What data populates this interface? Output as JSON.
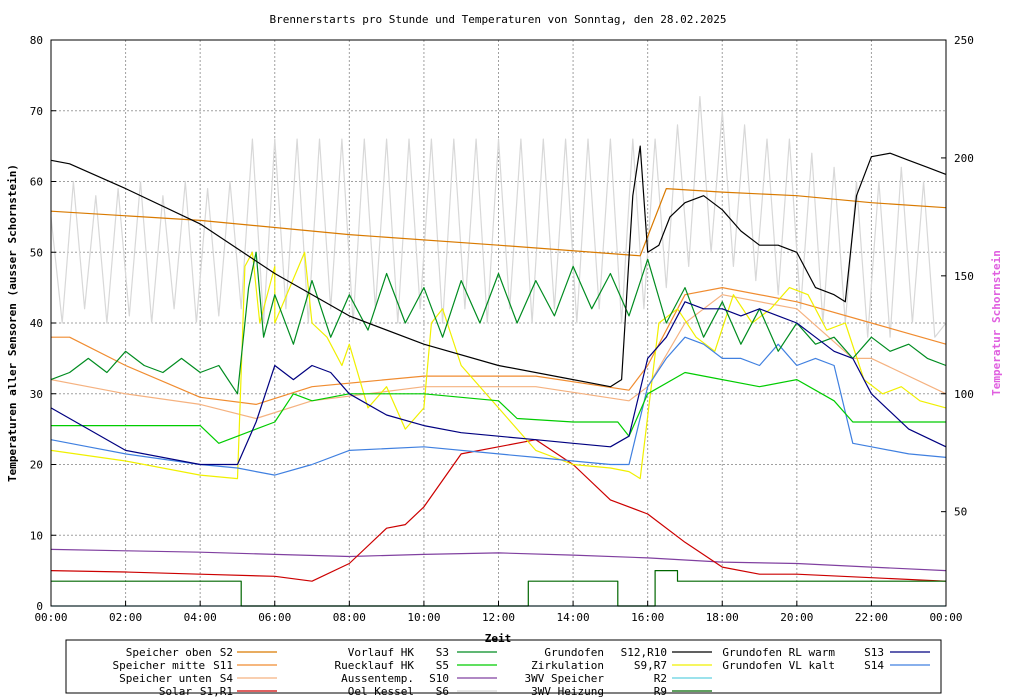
{
  "chart_data": {
    "type": "line",
    "title": "Brennerstarts pro Stunde und Temperaturen von Sonntag, den 28.02.2025",
    "xlabel": "Zeit",
    "ylabel": "Temperaturen aller Sensoren (ausser Schornstein)",
    "y2label": "Temperatur Schornstein",
    "xlim": [
      0,
      24
    ],
    "ylim": [
      0,
      80
    ],
    "y2lim": [
      10,
      250
    ],
    "grid": true,
    "legend_position": "bottom",
    "x_ticks": [
      {
        "v": 0,
        "label": "00:00"
      },
      {
        "v": 2,
        "label": "02:00"
      },
      {
        "v": 4,
        "label": "04:00"
      },
      {
        "v": 6,
        "label": "06:00"
      },
      {
        "v": 8,
        "label": "08:00"
      },
      {
        "v": 10,
        "label": "10:00"
      },
      {
        "v": 12,
        "label": "12:00"
      },
      {
        "v": 14,
        "label": "14:00"
      },
      {
        "v": 16,
        "label": "16:00"
      },
      {
        "v": 18,
        "label": "18:00"
      },
      {
        "v": 20,
        "label": "20:00"
      },
      {
        "v": 22,
        "label": "22:00"
      },
      {
        "v": 24,
        "label": "00:00"
      }
    ],
    "y_ticks": [
      {
        "v": 0,
        "label": "0"
      },
      {
        "v": 10,
        "label": "10"
      },
      {
        "v": 20,
        "label": "20"
      },
      {
        "v": 30,
        "label": "30"
      },
      {
        "v": 40,
        "label": "40"
      },
      {
        "v": 50,
        "label": "50"
      },
      {
        "v": 60,
        "label": "60"
      },
      {
        "v": 70,
        "label": "70"
      },
      {
        "v": 80,
        "label": "80"
      }
    ],
    "y2_ticks": [
      {
        "v": 50,
        "label": "50"
      },
      {
        "v": 100,
        "label": "100"
      },
      {
        "v": 150,
        "label": "150"
      },
      {
        "v": 200,
        "label": "200"
      },
      {
        "v": 250,
        "label": "250"
      }
    ],
    "series": [
      {
        "key": "s2",
        "name": "Speicher oben",
        "code": "S2",
        "color": "#d97a00",
        "axis": "y1",
        "x": [
          0,
          4,
          8,
          12,
          15.8,
          16.5,
          18,
          20,
          22,
          24
        ],
        "y": [
          55.8,
          54.5,
          52.5,
          51,
          49.5,
          59,
          58.5,
          58,
          57,
          56.3
        ]
      },
      {
        "key": "s11",
        "name": "Speicher mitte",
        "code": "S11",
        "color": "#f08c30",
        "axis": "y1",
        "x": [
          0,
          0.5,
          2,
          4,
          5.5,
          7,
          10,
          13,
          15.5,
          16,
          17,
          18,
          20,
          22,
          24
        ],
        "y": [
          38,
          38,
          34,
          29.5,
          28.5,
          31,
          32.5,
          32.5,
          30.5,
          34,
          44,
          45,
          43,
          40,
          37
        ]
      },
      {
        "key": "s4",
        "name": "Speicher unten",
        "code": "S4",
        "color": "#f5b280",
        "axis": "y1",
        "x": [
          0,
          2,
          4,
          5.5,
          7,
          10,
          13,
          15.5,
          16,
          17,
          18,
          20,
          21.5,
          22,
          24
        ],
        "y": [
          32,
          30,
          28.5,
          26.5,
          29,
          31,
          31,
          29,
          31,
          40,
          44,
          42,
          35,
          35,
          30
        ]
      },
      {
        "key": "s1",
        "name": "Solar",
        "code": "S1,R1",
        "color": "#cc0000",
        "axis": "y1",
        "x": [
          0,
          2,
          4,
          6,
          7,
          8,
          9,
          9.5,
          10,
          11,
          12,
          13,
          14,
          15,
          16,
          17,
          18,
          19,
          20,
          22,
          24
        ],
        "y": [
          5,
          4.8,
          4.5,
          4.2,
          3.5,
          6,
          11,
          11.5,
          14,
          21.5,
          22.5,
          23.5,
          20,
          15,
          13,
          9,
          5.5,
          4.5,
          4.5,
          4,
          3.5
        ]
      },
      {
        "key": "s3",
        "name": "Vorlauf HK",
        "code": "S3",
        "color": "#008c20",
        "axis": "y1",
        "x": [
          0,
          0.5,
          1,
          1.5,
          2,
          2.5,
          3,
          3.5,
          4,
          4.5,
          5,
          5.3,
          5.5,
          5.7,
          6,
          6.5,
          7,
          7.5,
          8,
          8.5,
          9,
          9.5,
          10,
          10.5,
          11,
          11.5,
          12,
          12.5,
          13,
          13.5,
          14,
          14.5,
          15,
          15.5,
          16,
          16.5,
          17,
          17.5,
          18,
          18.5,
          19,
          19.5,
          20,
          20.5,
          21,
          21.5,
          22,
          22.5,
          23,
          23.5,
          24
        ],
        "y": [
          32,
          33,
          35,
          33,
          36,
          34,
          33,
          35,
          33,
          34,
          30,
          45,
          50,
          38,
          44,
          37,
          46,
          38,
          44,
          39,
          47,
          40,
          45,
          38,
          46,
          40,
          47,
          40,
          46,
          41,
          48,
          42,
          47,
          41,
          49,
          40,
          45,
          38,
          43,
          37,
          42,
          36,
          40,
          37,
          38,
          35,
          38,
          36,
          37,
          35,
          34
        ]
      },
      {
        "key": "s5",
        "name": "Ruecklauf HK",
        "code": "S5",
        "color": "#00cc00",
        "axis": "y1",
        "x": [
          0,
          2,
          4,
          4.5,
          5,
          5.5,
          6,
          6.5,
          7,
          8,
          10,
          12,
          12.5,
          14,
          15.2,
          15.5,
          16,
          17,
          18,
          19,
          20,
          21,
          21.5,
          22,
          24
        ],
        "y": [
          25.5,
          25.5,
          25.5,
          23,
          24,
          25,
          26,
          30,
          29,
          30,
          30,
          29,
          26.5,
          26,
          26,
          24,
          30,
          33,
          32,
          31,
          32,
          29,
          26,
          26,
          26
        ]
      },
      {
        "key": "s10",
        "name": "Aussentemp.",
        "code": "S10",
        "color": "#8040a0",
        "axis": "y1",
        "x": [
          0,
          2,
          4,
          6,
          8,
          10,
          12,
          14,
          16,
          18,
          20,
          22,
          24
        ],
        "y": [
          8,
          7.8,
          7.6,
          7.3,
          7,
          7.3,
          7.5,
          7.2,
          6.8,
          6.2,
          6,
          5.5,
          5
        ]
      },
      {
        "key": "s6",
        "name": "Oel Kessel",
        "code": "S6",
        "color": "#d8d8d8",
        "axis": "y1",
        "x": [
          0,
          0.3,
          0.6,
          0.9,
          1.2,
          1.5,
          1.8,
          2.1,
          2.4,
          2.7,
          3.0,
          3.3,
          3.6,
          3.9,
          4.2,
          4.5,
          4.8,
          5.1,
          5.4,
          5.7,
          6.0,
          6.3,
          6.6,
          6.9,
          7.2,
          7.5,
          7.8,
          8.1,
          8.4,
          8.7,
          9.0,
          9.3,
          9.6,
          9.9,
          10.2,
          10.5,
          10.8,
          11.1,
          11.4,
          11.7,
          12.0,
          12.3,
          12.6,
          12.9,
          13.2,
          13.5,
          13.8,
          14.1,
          14.4,
          14.7,
          15.0,
          15.3,
          15.6,
          15.9,
          16.2,
          16.5,
          16.8,
          17.1,
          17.4,
          17.7,
          18.0,
          18.3,
          18.6,
          18.9,
          19.2,
          19.5,
          19.8,
          20.1,
          20.4,
          20.7,
          21.0,
          21.3,
          21.6,
          21.9,
          22.2,
          22.5,
          22.8,
          23.1,
          23.4,
          23.7,
          24
        ],
        "y": [
          55,
          40,
          60,
          42,
          58,
          40,
          59,
          41,
          60,
          40,
          58,
          42,
          60,
          40,
          59,
          41,
          60,
          42,
          66,
          40,
          66,
          42,
          66,
          40,
          66,
          42,
          66,
          40,
          66,
          42,
          66,
          40,
          66,
          42,
          66,
          40,
          66,
          42,
          66,
          40,
          66,
          42,
          66,
          40,
          66,
          42,
          66,
          40,
          66,
          42,
          66,
          40,
          66,
          42,
          66,
          45,
          68,
          48,
          72,
          50,
          70,
          48,
          68,
          46,
          66,
          44,
          66,
          42,
          64,
          40,
          62,
          40,
          60,
          38,
          60,
          38,
          62,
          40,
          60,
          38,
          40
        ]
      },
      {
        "key": "s12",
        "name": "Grundofen",
        "code": "S12,R10",
        "color": "#000000",
        "axis": "y1",
        "x": [
          0,
          0.5,
          2,
          4,
          6,
          8,
          10,
          12,
          14,
          15,
          15.3,
          15.6,
          15.8,
          16,
          16.3,
          16.6,
          17,
          17.5,
          18,
          18.5,
          19,
          19.5,
          20,
          20.5,
          21,
          21.3,
          21.6,
          22,
          22.5,
          23,
          23.5,
          24
        ],
        "y": [
          63,
          62.5,
          59,
          54,
          47,
          41,
          37,
          34,
          32,
          31,
          32,
          58,
          65,
          50,
          51,
          55,
          57,
          58,
          56,
          53,
          51,
          51,
          50,
          45,
          44,
          43,
          58,
          63.5,
          64,
          63,
          62,
          61
        ]
      },
      {
        "key": "s9",
        "name": "Zirkulation",
        "code": "S9,R7",
        "color": "#f0f000",
        "axis": "y1",
        "x": [
          0,
          2,
          4,
          5,
          5.2,
          5.4,
          5.6,
          6,
          6,
          6.8,
          7,
          7.4,
          7.8,
          8,
          8.5,
          9,
          9.5,
          10,
          10.2,
          10.5,
          11,
          12,
          13,
          14,
          15,
          15.5,
          15.8,
          16.3,
          16.8,
          17.3,
          17.8,
          18.3,
          18.8,
          19.3,
          19.8,
          20.3,
          20.8,
          21.3,
          21.8,
          22.3,
          22.8,
          23.3,
          24
        ],
        "y": [
          22,
          20.5,
          18.5,
          18,
          48,
          50,
          40,
          48,
          40,
          50,
          40,
          38,
          34,
          37,
          28,
          31,
          25,
          28,
          40,
          42,
          34,
          28,
          22,
          20,
          19.5,
          19,
          18,
          40,
          42,
          38,
          36,
          44,
          40,
          42,
          45,
          44,
          39,
          40,
          32,
          30,
          31,
          29,
          28
        ]
      },
      {
        "key": "r2",
        "name": "3WV Speicher",
        "code": "R2",
        "color": "#60d0e0",
        "axis": "y1",
        "x": [
          0,
          24
        ],
        "y": [
          0,
          0
        ]
      },
      {
        "key": "r9",
        "name": "3WV Heizung",
        "code": "R9",
        "color": "#006600",
        "axis": "y1",
        "x": [
          0,
          5.1,
          5.1,
          12.8,
          12.8,
          15.2,
          15.2,
          16.2,
          16.2,
          16.8,
          16.8,
          24
        ],
        "y": [
          3.5,
          3.5,
          0,
          0,
          3.5,
          3.5,
          0,
          0,
          5,
          5,
          3.5,
          3.5
        ]
      },
      {
        "key": "s13",
        "name": "Grundofen RL warm",
        "code": "S13",
        "color": "#000080",
        "axis": "y1",
        "x": [
          0,
          1,
          2,
          4,
          5,
          5.5,
          6,
          6.5,
          7,
          7.5,
          8,
          9,
          10,
          11,
          12,
          13,
          14,
          15,
          15.5,
          16,
          16.5,
          17,
          17.5,
          18,
          18.5,
          19,
          19.5,
          20,
          20.5,
          21,
          21.5,
          22,
          23,
          24
        ],
        "y": [
          28,
          25,
          22,
          20,
          20,
          26,
          34,
          32,
          34,
          33,
          30,
          27,
          25.5,
          24.5,
          24,
          23.5,
          23,
          22.5,
          24,
          35,
          38,
          43,
          42,
          42,
          41,
          42,
          41,
          40,
          38,
          36,
          35,
          30,
          25,
          22.5
        ]
      },
      {
        "key": "s14",
        "name": "Grundofen VL kalt",
        "code": "S14",
        "color": "#4080e0",
        "axis": "y1",
        "x": [
          0,
          1,
          2,
          4,
          5,
          5.5,
          6,
          7,
          8,
          10,
          12,
          13,
          14,
          15,
          15.5,
          16,
          16.5,
          17,
          17.5,
          18,
          18.5,
          19,
          19.5,
          20,
          20.5,
          21,
          21.5,
          22,
          23,
          24
        ],
        "y": [
          23.5,
          22.5,
          21.5,
          20,
          19.5,
          19,
          18.5,
          20,
          22,
          22.5,
          21.5,
          21,
          20.5,
          20,
          20,
          31,
          35,
          38,
          37,
          35,
          35,
          34,
          37,
          34,
          35,
          34,
          23,
          22.5,
          21.5,
          21
        ]
      }
    ]
  }
}
